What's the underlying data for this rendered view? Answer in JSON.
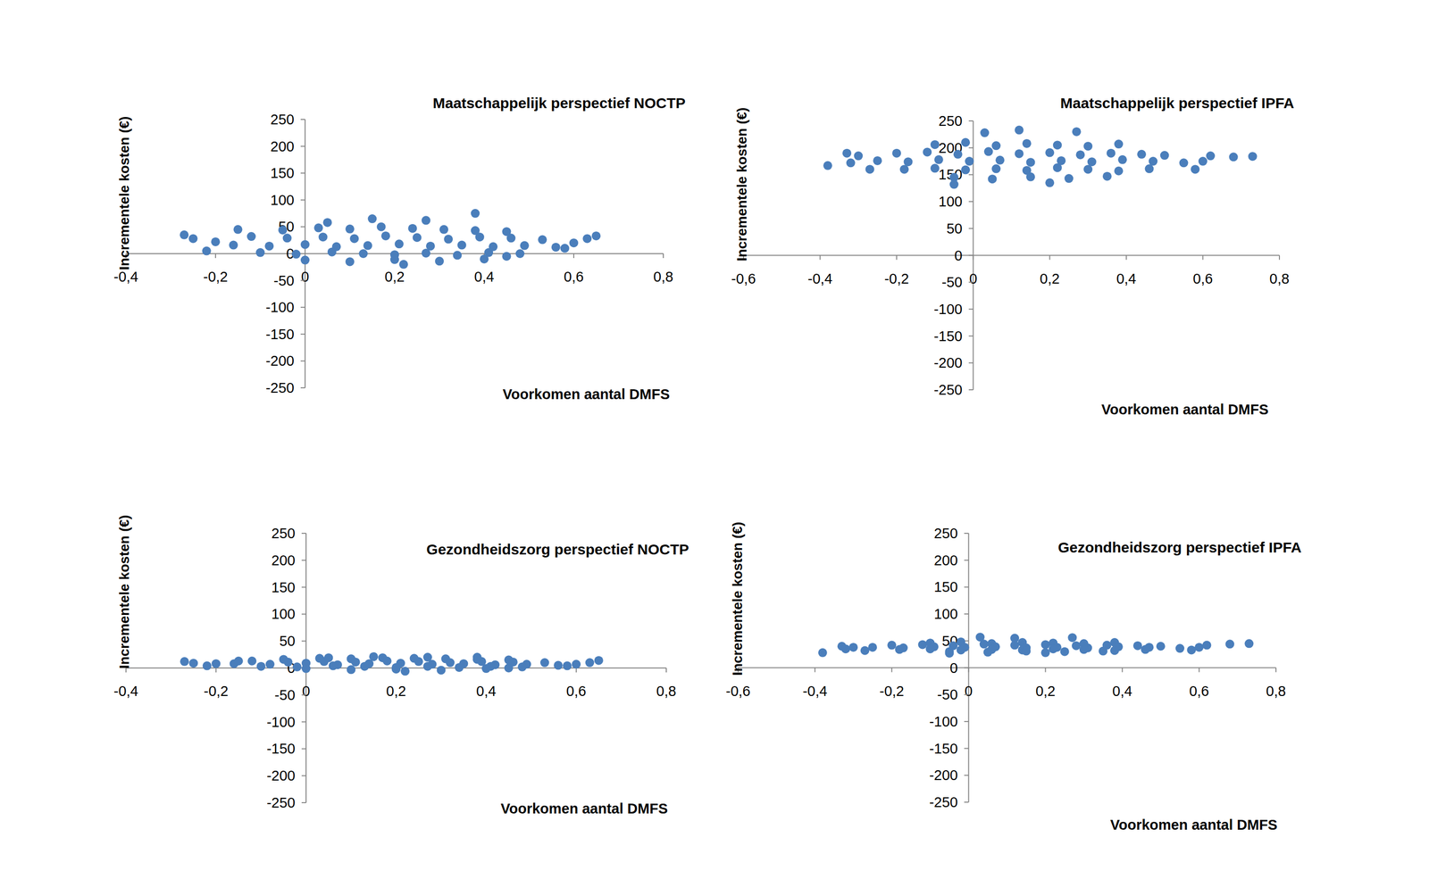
{
  "chart_data": [
    {
      "type": "scatter",
      "title": "Maatschappelijk perspectief NOCTP",
      "x_label": "Voorkomen aantal DMFS",
      "y_label": "Incrementele kosten (€)",
      "color": "#4a7ebb",
      "marker": "circle",
      "xlim": [
        -0.4,
        0.8
      ],
      "ylim": [
        -250,
        250
      ],
      "xticks": [
        {
          "value": -0.4,
          "label": "-0,4"
        },
        {
          "value": -0.2,
          "label": "-0,2"
        },
        0,
        {
          "value": 0.2,
          "label": "0,2"
        },
        {
          "value": 0.4,
          "label": "0,4"
        },
        {
          "value": 0.6,
          "label": "0,6"
        },
        {
          "value": 0.8,
          "label": "0,8"
        }
      ],
      "yticks": [
        -250,
        -200,
        -150,
        -100,
        -50,
        0,
        50,
        100,
        150,
        200,
        250
      ],
      "x": [
        -0.05,
        0.03,
        0.1,
        0.17,
        0.24,
        0.31,
        0.38,
        0.45,
        -0.12,
        -0.04,
        0.04,
        0.11,
        0.18,
        0.25,
        0.32,
        0.39,
        0.46,
        0.53,
        -0.16,
        -0.08,
        0,
        0.07,
        0.14,
        0.21,
        0.28,
        0.35,
        0.42,
        0.49,
        0.56,
        -0.1,
        -0.02,
        0.06,
        0.13,
        0.2,
        0.27,
        0.34,
        0.41,
        0.48,
        0,
        0.1,
        0.2,
        0.3,
        0.4,
        -0.27,
        -0.25,
        -0.22,
        -0.2,
        0.6,
        0.63,
        0.65,
        0.58,
        0.38,
        0.15,
        0.27,
        0.05,
        -0.15,
        0.22,
        0.45
      ],
      "values": [
        44,
        48,
        46,
        50,
        47,
        45,
        43,
        41,
        32,
        29,
        31,
        28,
        33,
        30,
        27,
        31,
        29,
        26,
        16,
        14,
        17,
        13,
        15,
        18,
        14,
        16,
        13,
        15,
        12,
        2,
        -1,
        3,
        0,
        -2,
        1,
        -3,
        2,
        0,
        -12,
        -15,
        -11,
        -14,
        -10,
        35,
        28,
        5,
        22,
        20,
        28,
        33,
        10,
        75,
        65,
        62,
        58,
        45,
        -20,
        -5
      ]
    },
    {
      "type": "scatter",
      "title": "Maatschappelijk perspectief IPFA",
      "x_label": "Voorkomen aantal DMFS",
      "y_label": "Incrementele kosten  (€)",
      "color": "#4a7ebb",
      "marker": "circle",
      "xlim": [
        -0.6,
        0.8
      ],
      "ylim": [
        -250,
        250
      ],
      "xticks": [
        {
          "value": -0.6,
          "label": "-0,6"
        },
        {
          "value": -0.4,
          "label": "-0,4"
        },
        {
          "value": -0.2,
          "label": "-0,2"
        },
        0,
        {
          "value": 0.2,
          "label": "0,2"
        },
        {
          "value": 0.4,
          "label": "0,4"
        },
        {
          "value": 0.6,
          "label": "0,6"
        },
        {
          "value": 0.8,
          "label": "0,8"
        }
      ],
      "yticks": [
        -250,
        -200,
        -150,
        -100,
        -50,
        0,
        50,
        100,
        150,
        200,
        250
      ],
      "x": [
        -0.1,
        -0.02,
        0.06,
        0.14,
        0.22,
        0.3,
        0.38,
        -0.2,
        -0.12,
        -0.04,
        0.04,
        0.12,
        0.2,
        0.28,
        0.36,
        0.44,
        0.5,
        -0.25,
        -0.17,
        -0.09,
        -0.01,
        0.07,
        0.15,
        0.23,
        0.31,
        0.39,
        0.47,
        0.55,
        -0.18,
        -0.1,
        -0.02,
        0.06,
        0.14,
        0.22,
        0.3,
        0.38,
        0.46,
        -0.05,
        0.05,
        0.15,
        0.25,
        0.35,
        -0.38,
        -0.33,
        -0.3,
        -0.27,
        -0.32,
        0.6,
        0.62,
        0.68,
        0.73,
        0.58,
        0.12,
        0.03,
        0.27,
        -0.05,
        0.2
      ],
      "values": [
        206,
        210,
        204,
        208,
        205,
        203,
        207,
        190,
        192,
        188,
        193,
        189,
        191,
        187,
        190,
        188,
        186,
        176,
        174,
        178,
        175,
        177,
        173,
        176,
        174,
        178,
        175,
        172,
        160,
        162,
        159,
        161,
        158,
        163,
        160,
        157,
        161,
        145,
        142,
        146,
        143,
        147,
        167,
        190,
        185,
        160,
        172,
        175,
        185,
        183,
        184,
        160,
        233,
        228,
        230,
        132,
        135
      ]
    },
    {
      "type": "scatter",
      "title": "Gezondheidszorg perspectief NOCTP",
      "x_label": "Voorkomen aantal DMFS",
      "y_label": "Incrementele kosten (€)",
      "color": "#4a7ebb",
      "marker": "circle",
      "xlim": [
        -0.4,
        0.8
      ],
      "ylim": [
        -250,
        250
      ],
      "xticks": [
        {
          "value": -0.4,
          "label": "-0,4"
        },
        {
          "value": -0.2,
          "label": "-0,2"
        },
        0,
        {
          "value": 0.2,
          "label": "0,2"
        },
        {
          "value": 0.4,
          "label": "0,4"
        },
        {
          "value": 0.6,
          "label": "0,6"
        },
        {
          "value": 0.8,
          "label": "0,8"
        }
      ],
      "yticks": [
        -250,
        -200,
        -150,
        -100,
        -50,
        0,
        50,
        100,
        150,
        200,
        250
      ],
      "x": [
        -0.05,
        0.03,
        0.1,
        0.17,
        0.24,
        0.31,
        0.38,
        0.45,
        -0.12,
        -0.04,
        0.04,
        0.11,
        0.18,
        0.25,
        0.32,
        0.39,
        0.46,
        0.53,
        -0.16,
        -0.08,
        0,
        0.07,
        0.14,
        0.21,
        0.28,
        0.35,
        0.42,
        0.49,
        0.56,
        -0.1,
        -0.02,
        0.06,
        0.13,
        0.2,
        0.27,
        0.34,
        0.41,
        0.48,
        0,
        0.1,
        0.2,
        0.3,
        0.4,
        -0.27,
        -0.25,
        -0.22,
        -0.2,
        0.6,
        0.63,
        0.65,
        0.58,
        0.38,
        0.15,
        0.27,
        0.05,
        -0.15,
        0.22,
        0.45
      ],
      "values": [
        16,
        18,
        17,
        19,
        18,
        17,
        16,
        15,
        13,
        11,
        12,
        11,
        13,
        12,
        10,
        12,
        11,
        10,
        8,
        7,
        9,
        6,
        8,
        9,
        7,
        8,
        6,
        7,
        5,
        3,
        2,
        4,
        3,
        1,
        3,
        1,
        3,
        2,
        -1,
        -3,
        -2,
        -4,
        -1,
        12,
        9,
        4,
        8,
        7,
        10,
        14,
        4,
        20,
        21,
        20,
        19,
        13,
        -6,
        0
      ]
    },
    {
      "type": "scatter",
      "title": "Gezondheidszorg perspectief IPFA",
      "x_label": "Voorkomen aantal DMFS",
      "y_label": "Incrementele kosten  (€)",
      "color": "#4a7ebb",
      "marker": "circle",
      "xlim": [
        -0.6,
        0.8
      ],
      "ylim": [
        -250,
        250
      ],
      "xticks": [
        {
          "value": -0.6,
          "label": "-0,6"
        },
        {
          "value": -0.4,
          "label": "-0,4"
        },
        {
          "value": -0.2,
          "label": "-0,2"
        },
        0,
        {
          "value": 0.2,
          "label": "0,2"
        },
        {
          "value": 0.4,
          "label": "0,4"
        },
        {
          "value": 0.6,
          "label": "0,6"
        },
        {
          "value": 0.8,
          "label": "0,8"
        }
      ],
      "yticks": [
        -250,
        -200,
        -150,
        -100,
        -50,
        0,
        50,
        100,
        150,
        200,
        250
      ],
      "x": [
        -0.1,
        -0.02,
        0.06,
        0.14,
        0.22,
        0.3,
        0.38,
        -0.2,
        -0.12,
        -0.04,
        0.04,
        0.12,
        0.2,
        0.28,
        0.36,
        0.44,
        0.5,
        -0.25,
        -0.17,
        -0.09,
        -0.01,
        0.07,
        0.15,
        0.23,
        0.31,
        0.39,
        0.47,
        0.55,
        -0.18,
        -0.1,
        -0.02,
        0.06,
        0.14,
        0.22,
        0.3,
        0.38,
        0.46,
        -0.05,
        0.05,
        0.15,
        0.25,
        0.35,
        -0.38,
        -0.33,
        -0.3,
        -0.27,
        -0.32,
        0.6,
        0.62,
        0.68,
        0.73,
        0.58,
        0.12,
        0.03,
        0.27,
        -0.05,
        0.2
      ],
      "values": [
        46,
        48,
        45,
        47,
        46,
        45,
        47,
        42,
        43,
        41,
        44,
        42,
        43,
        41,
        42,
        41,
        40,
        38,
        37,
        39,
        38,
        39,
        37,
        38,
        37,
        39,
        38,
        36,
        34,
        35,
        33,
        34,
        33,
        35,
        34,
        32,
        34,
        30,
        29,
        31,
        30,
        31,
        28,
        40,
        38,
        32,
        35,
        38,
        42,
        44,
        45,
        33,
        55,
        57,
        56,
        27,
        28
      ]
    }
  ]
}
